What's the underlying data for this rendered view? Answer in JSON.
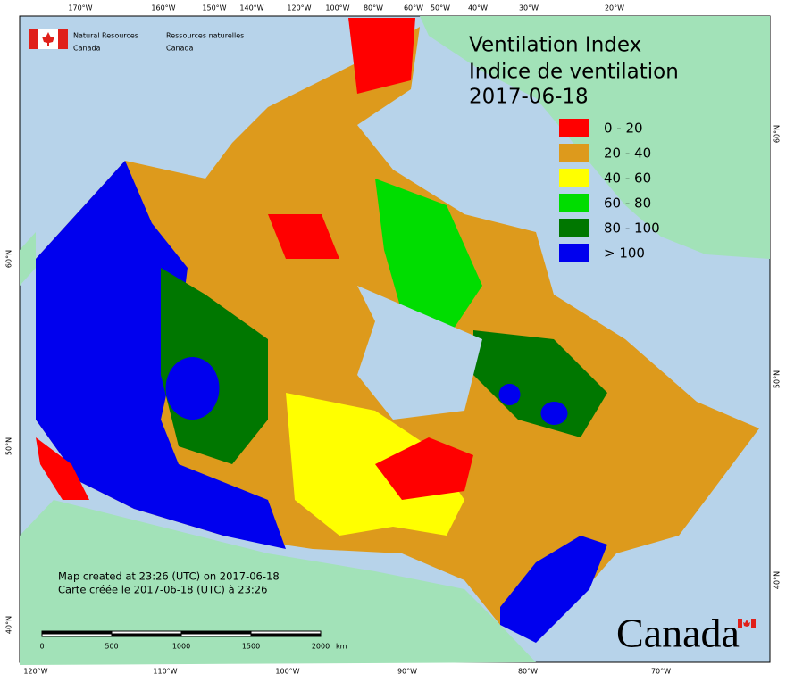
{
  "header": {
    "agency_en": [
      "Natural Resources",
      "Canada"
    ],
    "agency_fr": [
      "Ressources naturelles",
      "Canada"
    ]
  },
  "title": "Ventilation Index",
  "subtitle": "Indice de ventilation",
  "date": "2017-06-18",
  "legend": [
    {
      "label": "0 - 20",
      "color": "#ff0000"
    },
    {
      "label": "20 - 40",
      "color": "#dd9a1c"
    },
    {
      "label": "40 - 60",
      "color": "#ffff00"
    },
    {
      "label": "60 - 80",
      "color": "#00dd00"
    },
    {
      "label": "80 - 100",
      "color": "#007700"
    },
    {
      "label": "> 100",
      "color": "#0000ee"
    }
  ],
  "top_lon_labels": [
    "170°W",
    "160°W",
    "150°W",
    "140°W",
    "120°W",
    "100°W",
    "80°W",
    "60°W",
    "50°W",
    "40°W",
    "30°W",
    "20°W"
  ],
  "bottom_lon_labels": [
    "120°W",
    "110°W",
    "100°W",
    "90°W",
    "80°W",
    "70°W"
  ],
  "left_lat_labels": [
    "60°N",
    "50°N",
    "40°N"
  ],
  "right_lat_labels": [
    "60°N",
    "50°N",
    "40°N"
  ],
  "credits": [
    "Map created at 23:26 (UTC) on 2017-06-18",
    "Carte créée le 2017-06-18 (UTC) à 23:26"
  ],
  "scale_bar": {
    "labels": [
      "0",
      "500",
      "1000",
      "1500",
      "2000"
    ],
    "unit": "km"
  },
  "wordmark": "Canada"
}
